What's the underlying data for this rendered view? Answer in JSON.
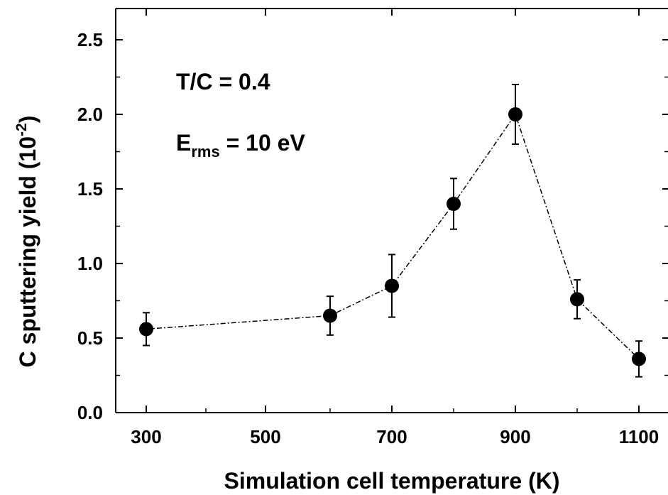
{
  "chart_data": {
    "type": "scatter",
    "xlabel": "Simulation cell temperature (K)",
    "ylabel": {
      "main": "C sputtering yield (10",
      "sup": "-2",
      "tail": ")"
    },
    "x_ticks": [
      300,
      500,
      700,
      900,
      1100
    ],
    "x_tick_labels": [
      "300",
      "500",
      "700",
      "900",
      "1100"
    ],
    "y_ticks": [
      0.0,
      0.5,
      1.0,
      1.5,
      2.0,
      2.5
    ],
    "y_tick_labels": [
      "0.0",
      "0.5",
      "1.0",
      "1.5",
      "2.0",
      "2.5"
    ],
    "ylim": [
      0,
      2.7
    ],
    "series": [
      {
        "x": [
          300,
          600,
          700,
          800,
          900,
          1000,
          1100
        ],
        "y": [
          0.56,
          0.65,
          0.85,
          1.4,
          2.0,
          0.76,
          0.36
        ],
        "err": [
          0.11,
          0.13,
          0.21,
          0.17,
          0.2,
          0.13,
          0.12
        ],
        "marker": "circle",
        "line_style": "dash-dot",
        "color": "#000000"
      }
    ],
    "annotations": [
      {
        "text": "T/C = 0.4"
      },
      {
        "base": "E",
        "sub": "rms",
        "text": " = 10 eV"
      }
    ],
    "grid": false
  }
}
